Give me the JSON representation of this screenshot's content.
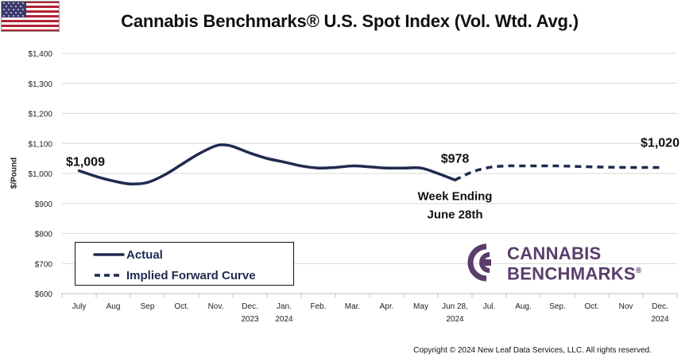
{
  "flag": {
    "country": "United States",
    "icon": "us-flag-icon"
  },
  "chart_data": {
    "type": "line",
    "title": "Cannabis Benchmarks® U.S. Spot Index (Vol. Wtd. Avg.)",
    "ylabel": "$/Pound",
    "xlabel": "",
    "ylim": [
      600,
      1400
    ],
    "yticks": [
      600,
      700,
      800,
      900,
      1000,
      1100,
      1200,
      1300,
      1400
    ],
    "ytick_labels": [
      "$600",
      "$700",
      "$800",
      "$900",
      "$1,000",
      "$1,100",
      "$1,200",
      "$1,300",
      "$1,400"
    ],
    "categories": [
      "July",
      "Aug",
      "Sep",
      "Oct.",
      "Nov.",
      "Dec. 2023",
      "Jan. 2024",
      "Feb.",
      "Mar.",
      "Apr.",
      "May",
      "Jun 28, 2024",
      "Jul.",
      "Aug.",
      "Sep.",
      "Oct.",
      "Nov",
      "Dec. 2024"
    ],
    "category_lines": [
      [
        "July"
      ],
      [
        "Aug"
      ],
      [
        "Sep"
      ],
      [
        "Oct."
      ],
      [
        "Nov."
      ],
      [
        "Dec.",
        "2023"
      ],
      [
        "Jan.",
        "2024"
      ],
      [
        "Feb."
      ],
      [
        "Mar."
      ],
      [
        "Apr."
      ],
      [
        "May"
      ],
      [
        "Jun 28,",
        "2024"
      ],
      [
        "Jul."
      ],
      [
        "Aug."
      ],
      [
        "Sep."
      ],
      [
        "Oct."
      ],
      [
        "Nov"
      ],
      [
        "Dec.",
        "2024"
      ]
    ],
    "grid": {
      "horizontal": true,
      "vertical": false
    },
    "legend_position": "bottom-left",
    "series": [
      {
        "name": "Actual",
        "style": "solid",
        "color": "#1f2a4f",
        "x": [
          0,
          0.5,
          1,
          1.5,
          2,
          2.5,
          3,
          3.5,
          4,
          4.25,
          4.5,
          5,
          5.5,
          6,
          6.5,
          7,
          7.5,
          8,
          8.5,
          9,
          9.5,
          10,
          10.5,
          11
        ],
        "values": [
          1009,
          990,
          975,
          965,
          970,
          995,
          1030,
          1065,
          1092,
          1095,
          1090,
          1068,
          1050,
          1038,
          1025,
          1018,
          1020,
          1025,
          1022,
          1018,
          1018,
          1018,
          1000,
          978
        ]
      },
      {
        "name": "Implied Forward Curve",
        "style": "dashed",
        "color": "#1f2a4f",
        "x": [
          11,
          11.5,
          12,
          12.5,
          13,
          14,
          15,
          16,
          17
        ],
        "values": [
          978,
          1005,
          1020,
          1025,
          1025,
          1025,
          1022,
          1020,
          1020
        ]
      }
    ],
    "annotations": [
      {
        "text": "$1,009",
        "x": 0,
        "y": 1009
      },
      {
        "text": "$978",
        "x": 11,
        "y": 978
      },
      {
        "text": "Week Ending",
        "x": 11,
        "y": 978
      },
      {
        "text": "June 28th",
        "x": 11,
        "y": 978
      },
      {
        "text": "$1,020",
        "x": 17,
        "y": 1020
      }
    ]
  },
  "legend": {
    "items": [
      {
        "label": "Actual",
        "style": "solid"
      },
      {
        "label": "Implied Forward Curve",
        "style": "dashed"
      }
    ]
  },
  "brand": {
    "line1": "CANNABIS",
    "line2": "BENCHMARKS",
    "mark": "®",
    "color": "#5a3d6b"
  },
  "copyright": "Copyright © 2024 New Leaf Data Services, LLC. All rights reserved."
}
